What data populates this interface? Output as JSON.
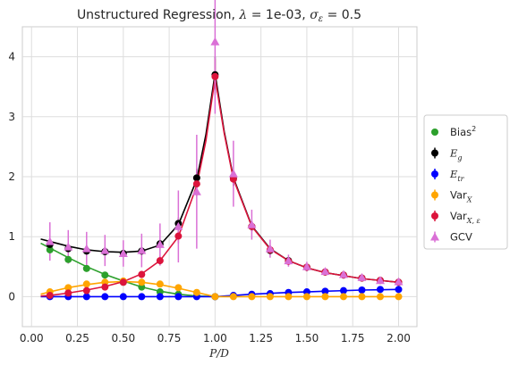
{
  "chart_data": {
    "type": "scatter",
    "title_prefix": "Unstructured Regression, ",
    "title_lambda": "λ",
    "title_lambda_value": " = 1e-03, ",
    "title_sigma": "σ",
    "title_sigma_sub": "ε",
    "title_sigma_value": " = 0.5",
    "xlabel": "P/D",
    "ylabel": "",
    "xlim": [
      -0.05,
      2.1
    ],
    "ylim": [
      -0.5,
      4.5
    ],
    "xticks": [
      "0.00",
      "0.25",
      "0.50",
      "0.75",
      "1.00",
      "1.25",
      "1.50",
      "1.75",
      "2.00"
    ],
    "yticks": [
      "0",
      "1",
      "2",
      "3",
      "4"
    ],
    "grid": true,
    "legend_position": "right",
    "x": [
      0.1,
      0.2,
      0.3,
      0.4,
      0.5,
      0.6,
      0.7,
      0.8,
      0.9,
      1.0,
      1.1,
      1.2,
      1.3,
      1.4,
      1.5,
      1.6,
      1.7,
      1.8,
      1.9,
      2.0
    ],
    "series": [
      {
        "name": "Bias",
        "name_sup": "2",
        "key": "bias",
        "color": "#2ca02c",
        "marker": "circle",
        "values": [
          0.78,
          0.62,
          0.47,
          0.36,
          0.24,
          0.16,
          0.08,
          0.04,
          0.01,
          0.0,
          null,
          null,
          null,
          null,
          null,
          null,
          null,
          null,
          null,
          null
        ],
        "curve": [
          [
            0.05,
            0.89
          ],
          [
            0.1,
            0.81
          ],
          [
            0.2,
            0.65
          ],
          [
            0.3,
            0.5
          ],
          [
            0.4,
            0.37
          ],
          [
            0.5,
            0.26
          ],
          [
            0.6,
            0.16
          ],
          [
            0.7,
            0.09
          ],
          [
            0.8,
            0.04
          ],
          [
            0.9,
            0.01
          ],
          [
            1.0,
            0.0
          ]
        ]
      },
      {
        "name": "E",
        "name_sub": "g",
        "key": "eg",
        "color": "#000000",
        "marker": "circle-err",
        "values": [
          0.87,
          0.8,
          0.76,
          0.75,
          0.72,
          0.76,
          0.88,
          1.22,
          1.98,
          3.7,
          1.97,
          1.17,
          0.77,
          0.6,
          0.49,
          0.41,
          0.36,
          0.31,
          0.27,
          0.24
        ],
        "errors": [
          0.06,
          0.06,
          0.06,
          0.06,
          0.06,
          0.06,
          0.07,
          0.1,
          0.15,
          0.3,
          0.12,
          0.08,
          0.06,
          0.05,
          0.04,
          0.04,
          0.03,
          0.03,
          0.03,
          0.03
        ],
        "curve": [
          [
            0.05,
            0.96
          ],
          [
            0.1,
            0.92
          ],
          [
            0.2,
            0.84
          ],
          [
            0.3,
            0.78
          ],
          [
            0.4,
            0.75
          ],
          [
            0.5,
            0.74
          ],
          [
            0.6,
            0.76
          ],
          [
            0.7,
            0.86
          ],
          [
            0.8,
            1.2
          ],
          [
            0.9,
            1.95
          ],
          [
            0.95,
            2.7
          ],
          [
            1.0,
            3.72
          ],
          [
            1.05,
            2.75
          ],
          [
            1.1,
            1.98
          ],
          [
            1.2,
            1.18
          ],
          [
            1.3,
            0.8
          ],
          [
            1.4,
            0.6
          ],
          [
            1.5,
            0.48
          ],
          [
            1.6,
            0.4
          ],
          [
            1.7,
            0.35
          ],
          [
            1.8,
            0.3
          ],
          [
            1.9,
            0.27
          ],
          [
            2.0,
            0.24
          ]
        ]
      },
      {
        "name": "E",
        "name_sub": "tr",
        "key": "etr",
        "color": "#0000ff",
        "marker": "circle-err",
        "values": [
          0.0,
          0.0,
          0.0,
          0.0,
          0.0,
          0.0,
          0.0,
          0.0,
          0.0,
          0.0,
          0.02,
          0.04,
          0.05,
          0.07,
          0.08,
          0.09,
          0.1,
          0.11,
          0.12,
          0.12
        ],
        "errors": [
          0.01,
          0.01,
          0.01,
          0.01,
          0.01,
          0.01,
          0.01,
          0.01,
          0.01,
          0.01,
          0.01,
          0.01,
          0.01,
          0.01,
          0.01,
          0.01,
          0.01,
          0.01,
          0.01,
          0.01
        ],
        "curve": [
          [
            0.05,
            0.0
          ],
          [
            1.0,
            0.0
          ],
          [
            1.1,
            0.02
          ],
          [
            1.2,
            0.04
          ],
          [
            1.3,
            0.055
          ],
          [
            1.4,
            0.07
          ],
          [
            1.5,
            0.08
          ],
          [
            1.6,
            0.09
          ],
          [
            1.7,
            0.1
          ],
          [
            1.8,
            0.11
          ],
          [
            1.9,
            0.115
          ],
          [
            2.0,
            0.12
          ]
        ]
      },
      {
        "name": "Var",
        "name_sub": "X",
        "key": "varx",
        "color": "#ffa500",
        "marker": "circle-err",
        "values": [
          0.08,
          0.15,
          0.21,
          0.24,
          0.26,
          0.24,
          0.21,
          0.15,
          0.07,
          0.0,
          0.0,
          0.0,
          0.0,
          0.0,
          0.0,
          0.0,
          0.0,
          0.0,
          0.0,
          0.0
        ],
        "errors": [
          0.01,
          0.01,
          0.01,
          0.01,
          0.01,
          0.01,
          0.01,
          0.01,
          0.01,
          0.01,
          0.01,
          0.01,
          0.01,
          0.01,
          0.01,
          0.01,
          0.01,
          0.01,
          0.01,
          0.01
        ],
        "curve": [
          [
            0.05,
            0.04
          ],
          [
            0.1,
            0.08
          ],
          [
            0.2,
            0.15
          ],
          [
            0.3,
            0.2
          ],
          [
            0.4,
            0.24
          ],
          [
            0.5,
            0.25
          ],
          [
            0.6,
            0.24
          ],
          [
            0.7,
            0.2
          ],
          [
            0.8,
            0.14
          ],
          [
            0.9,
            0.07
          ],
          [
            1.0,
            0.0
          ],
          [
            2.0,
            0.0
          ]
        ]
      },
      {
        "name": "Var",
        "name_sub": "X, ε",
        "key": "varxe",
        "color": "#dc143c",
        "marker": "circle-err",
        "values": [
          0.02,
          0.06,
          0.1,
          0.16,
          0.24,
          0.37,
          0.6,
          1.01,
          1.88,
          3.67,
          1.96,
          1.17,
          0.78,
          0.59,
          0.49,
          0.41,
          0.36,
          0.31,
          0.27,
          0.24
        ],
        "errors": [
          0.02,
          0.02,
          0.03,
          0.04,
          0.05,
          0.06,
          0.08,
          0.12,
          0.2,
          0.3,
          0.12,
          0.08,
          0.06,
          0.05,
          0.04,
          0.04,
          0.03,
          0.03,
          0.03,
          0.03
        ],
        "curve": [
          [
            0.05,
            0.01
          ],
          [
            0.1,
            0.02
          ],
          [
            0.2,
            0.06
          ],
          [
            0.3,
            0.11
          ],
          [
            0.4,
            0.17
          ],
          [
            0.5,
            0.25
          ],
          [
            0.6,
            0.38
          ],
          [
            0.7,
            0.6
          ],
          [
            0.8,
            1.0
          ],
          [
            0.9,
            1.85
          ],
          [
            0.95,
            2.6
          ],
          [
            1.0,
            3.65
          ],
          [
            1.05,
            2.72
          ],
          [
            1.1,
            1.96
          ],
          [
            1.2,
            1.17
          ],
          [
            1.3,
            0.79
          ],
          [
            1.4,
            0.6
          ],
          [
            1.5,
            0.48
          ],
          [
            1.6,
            0.4
          ],
          [
            1.7,
            0.35
          ],
          [
            1.8,
            0.3
          ],
          [
            1.9,
            0.27
          ],
          [
            2.0,
            0.24
          ]
        ]
      },
      {
        "name": "GCV",
        "key": "gcv",
        "color": "#da70d6",
        "marker": "triangle-err",
        "values": [
          0.92,
          0.83,
          0.8,
          0.77,
          0.72,
          0.77,
          0.87,
          1.17,
          1.75,
          4.25,
          2.05,
          1.2,
          0.8,
          0.6,
          0.5,
          0.42,
          0.37,
          0.32,
          0.27,
          0.25
        ],
        "errors": [
          0.32,
          0.28,
          0.28,
          0.26,
          0.22,
          0.28,
          0.35,
          0.6,
          0.95,
          1.2,
          0.55,
          0.25,
          0.15,
          0.1,
          0.08,
          0.06,
          0.05,
          0.05,
          0.04,
          0.04
        ],
        "curve": []
      }
    ]
  }
}
